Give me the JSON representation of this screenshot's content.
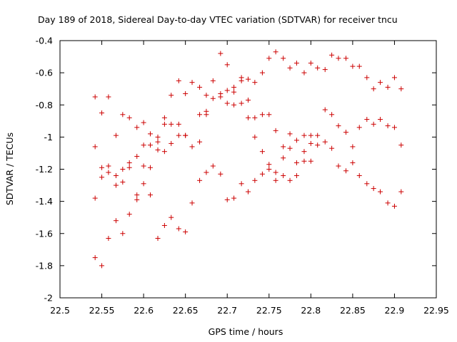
{
  "chart_data": {
    "type": "scatter",
    "title": "Day 189 of 2018, Sidereal Day-to-day VTEC variation (SDTVAR) for receiver tncu",
    "xlabel": "GPS time / hours",
    "ylabel": "SDTVAR / TECUs",
    "xlim": [
      22.5,
      22.95
    ],
    "ylim": [
      -2,
      -0.4
    ],
    "xticks": [
      22.5,
      22.55,
      22.6,
      22.65,
      22.7,
      22.75,
      22.8,
      22.85,
      22.9,
      22.95
    ],
    "yticks": [
      -2,
      -1.8,
      -1.6,
      -1.4,
      -1.2,
      -1,
      -0.8,
      -0.6,
      -0.4
    ],
    "xtick_labels": [
      "22.5",
      "22.55",
      "22.6",
      "22.65",
      "22.7",
      "22.75",
      "22.8",
      "22.85",
      "22.9",
      "22.95"
    ],
    "ytick_labels": [
      "-2",
      "-1.8",
      "-1.6",
      "-1.4",
      "-1.2",
      "-1",
      "-0.8",
      "-0.6",
      "-0.4"
    ],
    "marker": "+",
    "marker_color": "#cc0000",
    "grid": false,
    "series": [
      {
        "name": "SDTVAR",
        "points": [
          [
            22.542,
            -0.75
          ],
          [
            22.542,
            -1.06
          ],
          [
            22.542,
            -1.38
          ],
          [
            22.542,
            -1.75
          ],
          [
            22.55,
            -0.85
          ],
          [
            22.55,
            -1.19
          ],
          [
            22.55,
            -1.25
          ],
          [
            22.55,
            -1.8
          ],
          [
            22.558,
            -0.75
          ],
          [
            22.558,
            -1.18
          ],
          [
            22.558,
            -1.22
          ],
          [
            22.558,
            -1.63
          ],
          [
            22.567,
            -0.99
          ],
          [
            22.567,
            -1.24
          ],
          [
            22.567,
            -1.3
          ],
          [
            22.567,
            -1.52
          ],
          [
            22.575,
            -0.86
          ],
          [
            22.575,
            -1.2
          ],
          [
            22.575,
            -1.28
          ],
          [
            22.575,
            -1.6
          ],
          [
            22.583,
            -0.88
          ],
          [
            22.583,
            -1.16
          ],
          [
            22.583,
            -1.19
          ],
          [
            22.583,
            -1.48
          ],
          [
            22.592,
            -0.94
          ],
          [
            22.592,
            -1.12
          ],
          [
            22.592,
            -1.36
          ],
          [
            22.592,
            -1.39
          ],
          [
            22.6,
            -0.91
          ],
          [
            22.6,
            -1.05
          ],
          [
            22.6,
            -1.18
          ],
          [
            22.6,
            -1.29
          ],
          [
            22.608,
            -0.98
          ],
          [
            22.608,
            -1.05
          ],
          [
            22.608,
            -1.19
          ],
          [
            22.608,
            -1.36
          ],
          [
            22.617,
            -1.0
          ],
          [
            22.617,
            -1.03
          ],
          [
            22.617,
            -1.08
          ],
          [
            22.617,
            -1.63
          ],
          [
            22.625,
            -0.88
          ],
          [
            22.625,
            -0.92
          ],
          [
            22.625,
            -1.09
          ],
          [
            22.625,
            -1.55
          ],
          [
            22.633,
            -0.74
          ],
          [
            22.633,
            -0.92
          ],
          [
            22.633,
            -1.04
          ],
          [
            22.633,
            -1.5
          ],
          [
            22.642,
            -0.65
          ],
          [
            22.642,
            -0.92
          ],
          [
            22.642,
            -0.99
          ],
          [
            22.642,
            -1.57
          ],
          [
            22.65,
            -0.73
          ],
          [
            22.65,
            -0.99
          ],
          [
            22.65,
            -0.99
          ],
          [
            22.65,
            -1.59
          ],
          [
            22.658,
            -0.66
          ],
          [
            22.658,
            -1.06
          ],
          [
            22.658,
            -1.41
          ],
          [
            22.667,
            -0.69
          ],
          [
            22.667,
            -0.86
          ],
          [
            22.667,
            -1.03
          ],
          [
            22.667,
            -1.27
          ],
          [
            22.675,
            -0.74
          ],
          [
            22.675,
            -0.84
          ],
          [
            22.675,
            -0.86
          ],
          [
            22.675,
            -1.22
          ],
          [
            22.683,
            -0.65
          ],
          [
            22.683,
            -0.76
          ],
          [
            22.683,
            -1.18
          ],
          [
            22.692,
            -0.48
          ],
          [
            22.692,
            -0.73
          ],
          [
            22.692,
            -0.75
          ],
          [
            22.692,
            -1.23
          ],
          [
            22.7,
            -0.55
          ],
          [
            22.7,
            -0.71
          ],
          [
            22.7,
            -0.79
          ],
          [
            22.7,
            -1.39
          ],
          [
            22.708,
            -0.69
          ],
          [
            22.708,
            -0.72
          ],
          [
            22.708,
            -0.8
          ],
          [
            22.708,
            -1.38
          ],
          [
            22.717,
            -0.63
          ],
          [
            22.717,
            -0.65
          ],
          [
            22.717,
            -0.79
          ],
          [
            22.717,
            -1.29
          ],
          [
            22.725,
            -0.64
          ],
          [
            22.725,
            -0.77
          ],
          [
            22.725,
            -0.88
          ],
          [
            22.725,
            -1.34
          ],
          [
            22.733,
            -0.66
          ],
          [
            22.733,
            -0.88
          ],
          [
            22.733,
            -1.0
          ],
          [
            22.733,
            -1.27
          ],
          [
            22.742,
            -0.6
          ],
          [
            22.742,
            -0.86
          ],
          [
            22.742,
            -1.09
          ],
          [
            22.742,
            -1.23
          ],
          [
            22.75,
            -0.51
          ],
          [
            22.75,
            -0.86
          ],
          [
            22.75,
            -1.17
          ],
          [
            22.75,
            -1.2
          ],
          [
            22.758,
            -0.47
          ],
          [
            22.758,
            -0.96
          ],
          [
            22.758,
            -1.22
          ],
          [
            22.758,
            -1.27
          ],
          [
            22.767,
            -0.51
          ],
          [
            22.767,
            -1.06
          ],
          [
            22.767,
            -1.13
          ],
          [
            22.767,
            -1.24
          ],
          [
            22.775,
            -0.57
          ],
          [
            22.775,
            -0.98
          ],
          [
            22.775,
            -1.07
          ],
          [
            22.775,
            -1.27
          ],
          [
            22.783,
            -0.54
          ],
          [
            22.783,
            -1.02
          ],
          [
            22.783,
            -1.16
          ],
          [
            22.783,
            -1.24
          ],
          [
            22.792,
            -0.6
          ],
          [
            22.792,
            -0.99
          ],
          [
            22.792,
            -1.09
          ],
          [
            22.792,
            -1.15
          ],
          [
            22.8,
            -0.54
          ],
          [
            22.8,
            -0.99
          ],
          [
            22.8,
            -1.04
          ],
          [
            22.8,
            -1.15
          ],
          [
            22.808,
            -0.57
          ],
          [
            22.808,
            -0.99
          ],
          [
            22.808,
            -1.05
          ],
          [
            22.817,
            -0.58
          ],
          [
            22.817,
            -0.83
          ],
          [
            22.817,
            -1.03
          ],
          [
            22.825,
            -0.49
          ],
          [
            22.825,
            -0.86
          ],
          [
            22.825,
            -1.07
          ],
          [
            22.833,
            -0.51
          ],
          [
            22.833,
            -0.93
          ],
          [
            22.833,
            -1.18
          ],
          [
            22.842,
            -0.51
          ],
          [
            22.842,
            -0.97
          ],
          [
            22.842,
            -1.21
          ],
          [
            22.85,
            -0.56
          ],
          [
            22.85,
            -1.06
          ],
          [
            22.85,
            -1.16
          ],
          [
            22.858,
            -0.56
          ],
          [
            22.858,
            -0.94
          ],
          [
            22.858,
            -1.24
          ],
          [
            22.867,
            -0.63
          ],
          [
            22.867,
            -0.89
          ],
          [
            22.867,
            -1.29
          ],
          [
            22.875,
            -0.7
          ],
          [
            22.875,
            -0.92
          ],
          [
            22.875,
            -1.32
          ],
          [
            22.883,
            -0.66
          ],
          [
            22.883,
            -0.89
          ],
          [
            22.883,
            -1.34
          ],
          [
            22.892,
            -0.69
          ],
          [
            22.892,
            -0.93
          ],
          [
            22.892,
            -1.41
          ],
          [
            22.9,
            -0.63
          ],
          [
            22.9,
            -0.94
          ],
          [
            22.9,
            -1.43
          ],
          [
            22.908,
            -0.7
          ],
          [
            22.908,
            -1.05
          ],
          [
            22.908,
            -1.34
          ]
        ]
      }
    ]
  }
}
